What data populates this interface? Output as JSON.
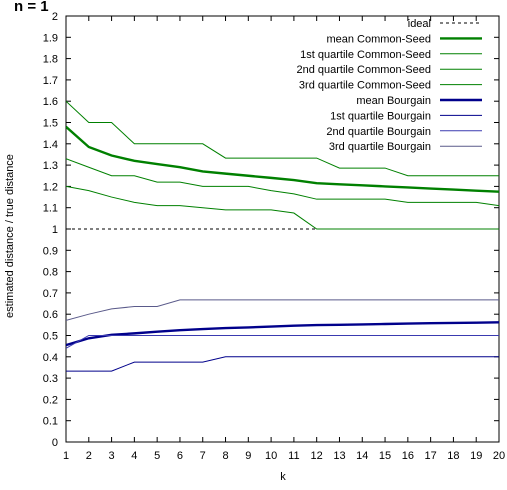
{
  "chart_data": {
    "type": "line",
    "title": "",
    "top_text": "n = 1",
    "xlabel": "k",
    "ylabel": "estimated distance / true distance",
    "xlim": [
      1,
      20
    ],
    "ylim": [
      0,
      2
    ],
    "x_ticks": [
      1,
      2,
      3,
      4,
      5,
      6,
      7,
      8,
      9,
      10,
      11,
      12,
      13,
      14,
      15,
      16,
      17,
      18,
      19,
      20
    ],
    "y_ticks": [
      0,
      0.1,
      0.2,
      0.3,
      0.4,
      0.5,
      0.6,
      0.7,
      0.8,
      0.9,
      1,
      1.1,
      1.2,
      1.3,
      1.4,
      1.5,
      1.6,
      1.7,
      1.8,
      1.9,
      2
    ],
    "y_tick_labels": [
      "0",
      "0.1",
      "0.2",
      "0.3",
      "0.4",
      "0.5",
      "0.6",
      "0.7",
      "0.8",
      "0.9",
      "1",
      "1.1",
      "1.2",
      "1.3",
      "1.4",
      "1.5",
      "1.6",
      "1.7",
      "1.8",
      "1.9",
      "2"
    ],
    "legend_position": "top-right",
    "x": [
      1,
      2,
      3,
      4,
      5,
      6,
      7,
      8,
      9,
      10,
      11,
      12,
      13,
      14,
      15,
      16,
      17,
      18,
      19,
      20
    ],
    "series": [
      {
        "name": "ideal",
        "color": "#000000",
        "dash": true,
        "bold": false,
        "step": false,
        "values": [
          1,
          1,
          1,
          1,
          1,
          1,
          1,
          1,
          1,
          1,
          1,
          1,
          1,
          1,
          1,
          1,
          1,
          1,
          1,
          1
        ]
      },
      {
        "name": "mean Common-Seed",
        "color": "#008000",
        "dash": false,
        "bold": true,
        "step": false,
        "values": [
          1.48,
          1.385,
          1.345,
          1.32,
          1.305,
          1.29,
          1.27,
          1.26,
          1.25,
          1.24,
          1.23,
          1.215,
          1.21,
          1.205,
          1.2,
          1.195,
          1.19,
          1.185,
          1.18,
          1.175
        ]
      },
      {
        "name": "1st quartile Common-Seed",
        "color": "#008000",
        "dash": false,
        "bold": false,
        "step": false,
        "values": [
          1.2,
          1.18,
          1.15,
          1.125,
          1.11,
          1.11,
          1.1,
          1.09,
          1.09,
          1.09,
          1.075,
          1,
          1,
          1,
          1,
          1,
          1,
          1,
          1,
          1
        ]
      },
      {
        "name": "2nd quartile Common-Seed",
        "color": "#008000",
        "dash": false,
        "bold": false,
        "step": false,
        "values": [
          1.33,
          1.29,
          1.25,
          1.25,
          1.22,
          1.22,
          1.2,
          1.2,
          1.2,
          1.18,
          1.165,
          1.14,
          1.14,
          1.14,
          1.14,
          1.125,
          1.125,
          1.125,
          1.125,
          1.11
        ]
      },
      {
        "name": "3rd quartile Common-Seed",
        "color": "#008000",
        "dash": false,
        "bold": false,
        "step": false,
        "values": [
          1.6,
          1.5,
          1.5,
          1.4,
          1.4,
          1.4,
          1.4,
          1.333,
          1.333,
          1.333,
          1.333,
          1.333,
          1.286,
          1.286,
          1.286,
          1.25,
          1.25,
          1.25,
          1.25,
          1.25
        ]
      },
      {
        "name": "mean Bourgain",
        "color": "#00008b",
        "dash": false,
        "bold": true,
        "step": false,
        "values": [
          0.455,
          0.487,
          0.503,
          0.51,
          0.518,
          0.525,
          0.53,
          0.535,
          0.538,
          0.542,
          0.546,
          0.549,
          0.55,
          0.552,
          0.554,
          0.556,
          0.558,
          0.559,
          0.56,
          0.562
        ]
      },
      {
        "name": "1st quartile Bourgain",
        "color": "#00008b",
        "dash": false,
        "bold": false,
        "step": false,
        "values": [
          0.333,
          0.333,
          0.333,
          0.375,
          0.375,
          0.375,
          0.375,
          0.4,
          0.4,
          0.4,
          0.4,
          0.4,
          0.4,
          0.4,
          0.4,
          0.4,
          0.4,
          0.4,
          0.4,
          0.4
        ]
      },
      {
        "name": "2nd quartile Bourgain",
        "color": "#3a3ab0",
        "dash": false,
        "bold": false,
        "step": false,
        "values": [
          0.44,
          0.5,
          0.5,
          0.5,
          0.5,
          0.5,
          0.5,
          0.5,
          0.5,
          0.5,
          0.5,
          0.5,
          0.5,
          0.5,
          0.5,
          0.5,
          0.5,
          0.5,
          0.5,
          0.5
        ]
      },
      {
        "name": "3rd quartile Bourgain",
        "color": "#5a5a8a",
        "dash": false,
        "bold": false,
        "step": false,
        "values": [
          0.571,
          0.6,
          0.625,
          0.636,
          0.636,
          0.667,
          0.667,
          0.667,
          0.667,
          0.667,
          0.667,
          0.667,
          0.667,
          0.667,
          0.667,
          0.667,
          0.667,
          0.667,
          0.667,
          0.667
        ]
      }
    ]
  }
}
